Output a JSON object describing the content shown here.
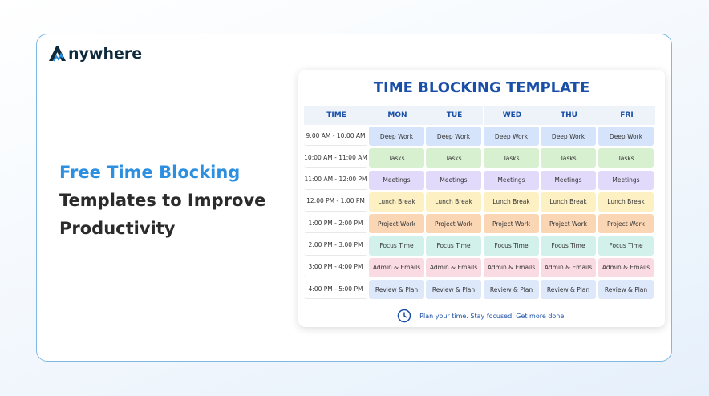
{
  "logo": "nywhere",
  "headline": {
    "highlight": "Free Time Blocking",
    "rest": "Templates to Improve Productivity"
  },
  "template": {
    "title": "TIME BLOCKING TEMPLATE",
    "headers": [
      "TIME",
      "MON",
      "TUE",
      "WED",
      "THU",
      "FRI"
    ],
    "rows": [
      {
        "time": "9:00 AM - 10:00 AM",
        "cells": [
          "Deep Work",
          "Deep Work",
          "Deep Work",
          "Deep Work",
          "Deep Work"
        ]
      },
      {
        "time": "10:00 AM - 11:00 AM",
        "cells": [
          "Tasks",
          "Tasks",
          "Tasks",
          "Tasks",
          "Tasks"
        ]
      },
      {
        "time": "11:00 AM - 12:00 PM",
        "cells": [
          "Meetings",
          "Meetings",
          "Meetings",
          "Meetings",
          "Meetings"
        ]
      },
      {
        "time": "12:00 PM - 1:00 PM",
        "cells": [
          "Lunch Break",
          "Lunch Break",
          "Lunch Break",
          "Lunch Break",
          "Lunch Break"
        ]
      },
      {
        "time": "1:00 PM - 2:00 PM",
        "cells": [
          "Project Work",
          "Project Work",
          "Project Work",
          "Project Work",
          "Project Work"
        ]
      },
      {
        "time": "2:00 PM - 3:00 PM",
        "cells": [
          "Focus Time",
          "Focus Time",
          "Focus Time",
          "Focus Time",
          "Focus Time"
        ]
      },
      {
        "time": "3:00 PM - 4:00 PM",
        "cells": [
          "Admin & Emails",
          "Admin & Emails",
          "Admin & Emails",
          "Admin & Emails",
          "Admin & Emails"
        ]
      },
      {
        "time": "4:00 PM - 5:00 PM",
        "cells": [
          "Review & Plan",
          "Review & Plan",
          "Review & Plan",
          "Review & Plan",
          "Review & Plan"
        ]
      }
    ],
    "footer": "Plan your time. Stay focused. Get more done."
  }
}
